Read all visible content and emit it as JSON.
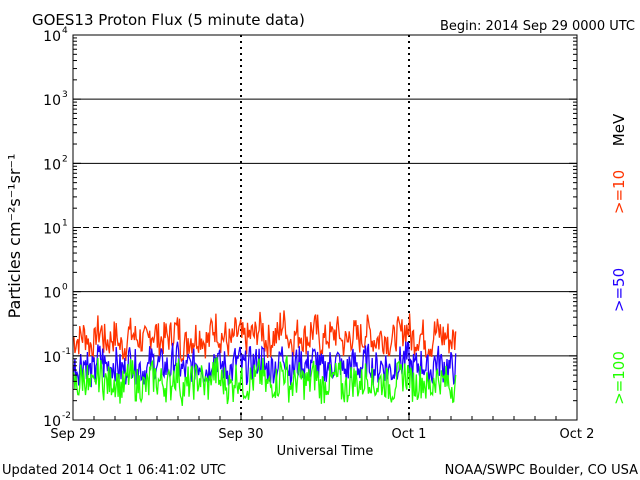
{
  "title": "GOES13 Proton Flux (5 minute data)",
  "begin_label": "Begin: 2014 Sep 29 0000 UTC",
  "updated_label": "Updated 2014 Oct  1 06:41:02 UTC",
  "credit_label": "NOAA/SWPC Boulder, CO USA",
  "colors": {
    "ge10": "#ff3300",
    "ge50": "#2200ff",
    "ge100": "#22ff00",
    "axis": "#000000",
    "background": "#ffffff"
  },
  "chart_data": {
    "type": "line",
    "title": "GOES13 Proton Flux (5 minute data)",
    "xlabel": "Universal Time",
    "ylabel": "Particles cm⁻²s⁻¹sr⁻¹",
    "y_scale": "log",
    "ylim": [
      0.01,
      10000
    ],
    "y_ticks": [
      {
        "value": 0.01,
        "base": "10",
        "exp": "-2"
      },
      {
        "value": 0.1,
        "base": "10",
        "exp": "-1"
      },
      {
        "value": 1,
        "base": "10",
        "exp": "0"
      },
      {
        "value": 10,
        "base": "10",
        "exp": "1"
      },
      {
        "value": 100,
        "base": "10",
        "exp": "2"
      },
      {
        "value": 1000,
        "base": "10",
        "exp": "3"
      },
      {
        "value": 10000,
        "base": "10",
        "exp": "4"
      }
    ],
    "x_tick_labels": [
      "Sep 29",
      "Sep 30",
      "Oct 1",
      "Oct 2"
    ],
    "xlim": [
      "2014-09-29T00:00Z",
      "2014-10-02T00:00Z"
    ],
    "threshold_lines": [
      1,
      10,
      100,
      1000
    ],
    "threshold_dashed": [
      10
    ],
    "unit_label": "MeV",
    "series": [
      {
        "name": ">=10",
        "color": "#ff3300",
        "values": [
          0.18,
          0.21,
          0.15,
          0.24,
          0.17,
          0.2,
          0.14,
          0.22,
          0.19,
          0.16,
          0.23,
          0.18,
          0.2,
          0.25,
          0.15,
          0.19,
          0.21,
          0.17,
          0.28,
          0.2,
          0.16,
          0.22,
          0.18,
          0.21,
          0.26,
          0.17,
          0.2,
          0.31,
          0.18,
          0.22,
          0.19,
          0.25,
          0.17,
          0.2,
          0.23,
          0.16,
          0.21,
          0.19,
          0.24,
          0.18,
          0.2,
          0.17,
          0.22,
          0.26,
          0.19,
          0.21,
          0.16,
          0.23,
          0.2,
          0.18
        ]
      },
      {
        "name": ">=50",
        "color": "#2200ff",
        "values": [
          0.065,
          0.08,
          0.055,
          0.09,
          0.07,
          0.075,
          0.06,
          0.085,
          0.068,
          0.06,
          0.08,
          0.072,
          0.065,
          0.09,
          0.058,
          0.07,
          0.078,
          0.062,
          0.095,
          0.07,
          0.06,
          0.082,
          0.066,
          0.075,
          0.088,
          0.062,
          0.07,
          0.1,
          0.065,
          0.078,
          0.07,
          0.086,
          0.06,
          0.072,
          0.08,
          0.058,
          0.075,
          0.068,
          0.084,
          0.064,
          0.072,
          0.06,
          0.078,
          0.09,
          0.066,
          0.074,
          0.058,
          0.082,
          0.07,
          0.064
        ]
      },
      {
        "name": ">=100",
        "color": "#22ff00",
        "values": [
          0.035,
          0.045,
          0.03,
          0.05,
          0.038,
          0.042,
          0.032,
          0.048,
          0.036,
          0.033,
          0.046,
          0.039,
          0.035,
          0.052,
          0.031,
          0.038,
          0.044,
          0.034,
          0.055,
          0.04,
          0.033,
          0.047,
          0.036,
          0.042,
          0.05,
          0.034,
          0.039,
          0.058,
          0.035,
          0.044,
          0.038,
          0.049,
          0.033,
          0.04,
          0.045,
          0.031,
          0.042,
          0.037,
          0.048,
          0.035,
          0.04,
          0.033,
          0.044,
          0.051,
          0.036,
          0.041,
          0.032,
          0.046,
          0.039,
          0.035
        ]
      }
    ],
    "series_x_range": [
      "2014-09-29T00:00Z",
      "2014-10-01T06:40Z"
    ],
    "grid": false
  }
}
